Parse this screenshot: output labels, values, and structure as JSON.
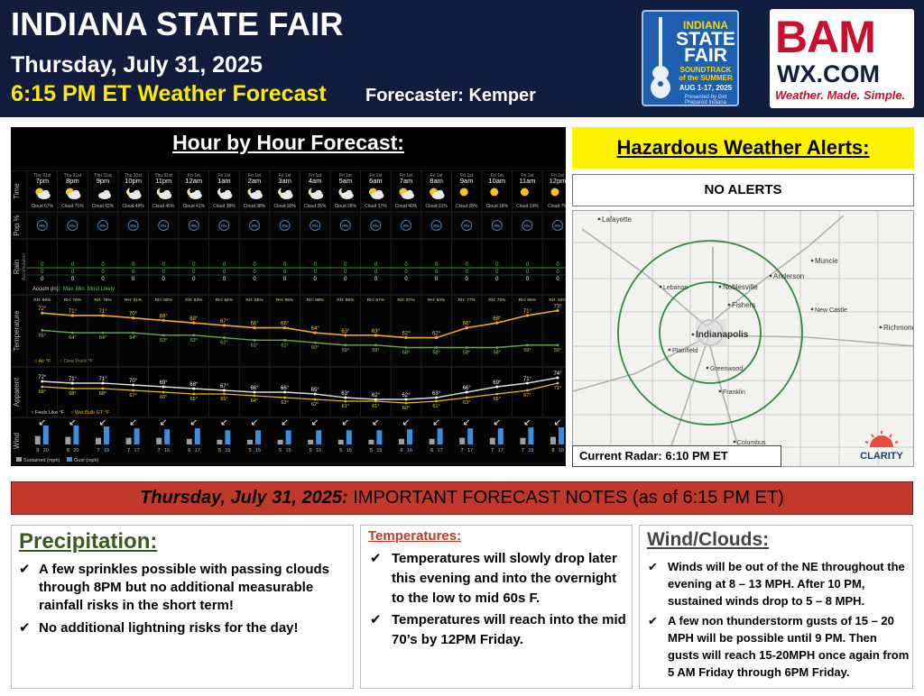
{
  "header": {
    "title": "INDIANA STATE FAIR",
    "date": "Thursday, July 31, 2025",
    "forecast_time": "6:15 PM ET Weather Forecast",
    "forecaster": "Forecaster: Kemper",
    "fair_logo": {
      "line1": "INDIANA",
      "line2": "STATE",
      "line3": "FAIR",
      "tagline1": "SOUNDTRACK",
      "tagline2": "of the SUMMER",
      "dates": "AUG 1-17, 2025",
      "sponsor": "Presented by Get Prepared Indiana"
    },
    "bam_logo": {
      "brand": "BAM",
      "site": "WX.COM",
      "slogan": "Weather. Made. Simple."
    }
  },
  "hourly": {
    "title": "Hour by Hour Forecast:",
    "row_labels": {
      "time": "Time",
      "pop": "Pop %",
      "rain": "Rain",
      "rain_sub": "Accumulation",
      "temp": "Temperature",
      "apparent": "Apparent",
      "wind": "Wind"
    },
    "accum_label": "Accum (in):",
    "accum_legend": [
      "Max",
      "Min",
      "Most Likely"
    ],
    "temp_legend": [
      "Air °F",
      "Dew Point °F"
    ],
    "apparent_legend": [
      "Feels Like °F",
      "Wet Bulb GT °F"
    ],
    "wind_legend": [
      "Sustained (mph)",
      "Gust (mph)"
    ],
    "hours": [
      {
        "day": "Thu 31st",
        "time": "7pm",
        "icon": "sun-cloud-icon",
        "cloud": "Cloud 67%",
        "pop": "0%",
        "rain": [
          "0",
          "0",
          "0"
        ],
        "rh": "RH: 60%",
        "air": 72,
        "dew": 65,
        "feels": 72,
        "wbgt": 69,
        "sust": 9,
        "gust": 20
      },
      {
        "day": "Thu 31st",
        "time": "8pm",
        "icon": "sun-cloud-icon",
        "cloud": "Cloud 71%",
        "pop": "0%",
        "rain": [
          "0",
          "0",
          "0"
        ],
        "rh": "RH: 78%",
        "air": 71,
        "dew": 64,
        "feels": 71,
        "wbgt": 68,
        "sust": 8,
        "gust": 20
      },
      {
        "day": "Thu 31st",
        "time": "9pm",
        "icon": "cloud-icon",
        "cloud": "Cloud 62%",
        "pop": "0%",
        "rain": [
          "0",
          "0",
          "0"
        ],
        "rh": "RH: 79%",
        "air": 71,
        "dew": 64,
        "feels": 71,
        "wbgt": 68,
        "sust": 7,
        "gust": 19
      },
      {
        "day": "Thu 31st",
        "time": "10pm",
        "icon": "moon-cloud-icon",
        "cloud": "Cloud 49%",
        "pop": "0%",
        "rain": [
          "0",
          "0",
          "0"
        ],
        "rh": "RH: 81%",
        "air": 70,
        "dew": 64,
        "feels": 70,
        "wbgt": 67,
        "sust": 7,
        "gust": 17
      },
      {
        "day": "Thu 31st",
        "time": "11pm",
        "icon": "moon-cloud-icon",
        "cloud": "Cloud 45%",
        "pop": "0%",
        "rain": [
          "0",
          "0",
          "0"
        ],
        "rh": "RH: 82%",
        "air": 69,
        "dew": 63,
        "feels": 69,
        "wbgt": 66,
        "sust": 7,
        "gust": 16
      },
      {
        "day": "Fri 1st",
        "time": "12am",
        "icon": "moon-cloud-icon",
        "cloud": "Cloud 41%",
        "pop": "0%",
        "rain": [
          "0",
          "0",
          "0"
        ],
        "rh": "RH: 83%",
        "air": 68,
        "dew": 63,
        "feels": 68,
        "wbgt": 65,
        "sust": 6,
        "gust": 17
      },
      {
        "day": "Fri 1st",
        "time": "1am",
        "icon": "moon-cloud-icon",
        "cloud": "Cloud 38%",
        "pop": "0%",
        "rain": [
          "0",
          "0",
          "0"
        ],
        "rh": "RH: 84%",
        "air": 67,
        "dew": 62,
        "feels": 67,
        "wbgt": 65,
        "sust": 5,
        "gust": 15
      },
      {
        "day": "Fri 1st",
        "time": "2am",
        "icon": "moon-cloud-icon",
        "cloud": "Cloud 38%",
        "pop": "0%",
        "rain": [
          "0",
          "0",
          "0"
        ],
        "rh": "RH: 85%",
        "air": 66,
        "dew": 61,
        "feels": 66,
        "wbgt": 64,
        "sust": 5,
        "gust": 15
      },
      {
        "day": "Fri 1st",
        "time": "3am",
        "icon": "moon-cloud-icon",
        "cloud": "Cloud 30%",
        "pop": "0%",
        "rain": [
          "0",
          "0",
          "0"
        ],
        "rh": "RH: 85%",
        "air": 66,
        "dew": 61,
        "feels": 66,
        "wbgt": 63,
        "sust": 5,
        "gust": 15
      },
      {
        "day": "Fri 1st",
        "time": "4am",
        "icon": "moon-cloud-icon",
        "cloud": "Cloud 26%",
        "pop": "0%",
        "rain": [
          "0",
          "0",
          "0"
        ],
        "rh": "RH: 86%",
        "air": 64,
        "dew": 60,
        "feels": 65,
        "wbgt": 62,
        "sust": 5,
        "gust": 15
      },
      {
        "day": "Fri 1st",
        "time": "5am",
        "icon": "moon-cloud-icon",
        "cloud": "Cloud 28%",
        "pop": "0%",
        "rain": [
          "0",
          "0",
          "0"
        ],
        "rh": "RH: 86%",
        "air": 63,
        "dew": 59,
        "feels": 63,
        "wbgt": 61,
        "sust": 5,
        "gust": 15
      },
      {
        "day": "Fri 1st",
        "time": "6am",
        "icon": "sun-cloud-icon",
        "cloud": "Cloud 37%",
        "pop": "0%",
        "rain": [
          "0",
          "0",
          "0"
        ],
        "rh": "RH: 87%",
        "air": 63,
        "dew": 59,
        "feels": 62,
        "wbgt": 61,
        "sust": 5,
        "gust": 15
      },
      {
        "day": "Fri 1st",
        "time": "7am",
        "icon": "sun-cloud-icon",
        "cloud": "Cloud 40%",
        "pop": "0%",
        "rain": [
          "0",
          "0",
          "0"
        ],
        "rh": "RH: 87%",
        "air": 62,
        "dew": 58,
        "feels": 62,
        "wbgt": 60,
        "sust": 6,
        "gust": 16
      },
      {
        "day": "Fri 1st",
        "time": "8am",
        "icon": "sun-cloud-icon",
        "cloud": "Cloud 31%",
        "pop": "0%",
        "rain": [
          "0",
          "0",
          "0"
        ],
        "rh": "RH: 84%",
        "air": 62,
        "dew": 58,
        "feels": 63,
        "wbgt": 61,
        "sust": 6,
        "gust": 17
      },
      {
        "day": "Fri 1st",
        "time": "9am",
        "icon": "sun-icon",
        "cloud": "Cloud 28%",
        "pop": "0%",
        "rain": [
          "0",
          "0",
          "0"
        ],
        "rh": "RH: 77%",
        "air": 66,
        "dew": 58,
        "feels": 66,
        "wbgt": 63,
        "sust": 7,
        "gust": 17
      },
      {
        "day": "Fri 1st",
        "time": "10am",
        "icon": "sun-icon",
        "cloud": "Cloud 18%",
        "pop": "0%",
        "rain": [
          "0",
          "0",
          "0"
        ],
        "rh": "RH: 70%",
        "air": 68,
        "dew": 58,
        "feels": 69,
        "wbgt": 65,
        "sust": 7,
        "gust": 17
      },
      {
        "day": "Fri 1st",
        "time": "11am",
        "icon": "sun-icon",
        "cloud": "Cloud 19%",
        "pop": "0%",
        "rain": [
          "0",
          "0",
          "0"
        ],
        "rh": "RH: 65%",
        "air": 71,
        "dew": 59,
        "feels": 71,
        "wbgt": 67,
        "sust": 7,
        "gust": 18
      },
      {
        "day": "Fri 1st",
        "time": "12pm",
        "icon": "sun-icon",
        "cloud": "Cloud 7%",
        "pop": "0%",
        "rain": [
          "0",
          "0",
          "0"
        ],
        "rh": "RH: 60%",
        "air": 73,
        "dew": 59,
        "feels": 74,
        "wbgt": 71,
        "sust": 8,
        "gust": 18
      }
    ]
  },
  "alerts": {
    "title": "Hazardous Weather Alerts:",
    "status": "NO ALERTS",
    "radar_label": "Current Radar: 6:10 PM ET",
    "clarity_logo": "CLARITY",
    "map_places": [
      "Lafayette",
      "Muncie",
      "Anderson",
      "Noblesville",
      "Lebanon",
      "Fishers",
      "New Castle",
      "Indianapolis",
      "Richmond",
      "Plainfield",
      "Greenwood",
      "Franklin",
      "Columbus"
    ]
  },
  "notes": {
    "banner_date": "Thursday, July 31, 2025:",
    "banner_rest": " IMPORTANT FORECAST NOTES (as of 6:15 PM ET)",
    "precip": {
      "heading": "Precipitation:",
      "bullets": [
        "A few sprinkles possible with passing clouds through 8PM but no additional measurable rainfall risks in the short term!",
        "No additional lightning risks for the day!"
      ]
    },
    "temps": {
      "heading": "Temperatures:",
      "bullets": [
        "Temperatures will slowly drop later this evening and into the overnight to the low to mid 60s F.",
        "Temperatures will reach into the mid 70’s by 12PM Friday."
      ]
    },
    "wind": {
      "heading": "Wind/Clouds:",
      "bullets": [
        "Winds will be out of the NE throughout the evening at 8 – 13 MPH. After 10 PM, sustained winds drop to 5 – 8 MPH.",
        "A few non thunderstorm gusts of 15 – 20 MPH will be possible until 9 PM. Then gusts will reach 15-20MPH once again from 5 AM Friday through 6PM Friday."
      ]
    },
    "check_glyph": "✔"
  },
  "colors": {
    "header_bg": "#111d3d",
    "accent_yellow": "#ffe900",
    "banner_red": "#c0392b",
    "air_line": "#f5a623",
    "dew_line": "#6aa84f",
    "gust_bar": "#3b8fe0",
    "sustained_bar": "#9e9e9e"
  }
}
